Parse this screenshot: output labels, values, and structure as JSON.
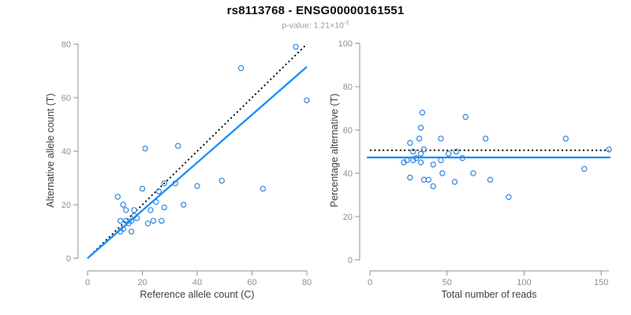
{
  "header": {
    "title": "rs8113768 - ENSG00000161551",
    "subtitle_prefix": "p-value: 1.21×10",
    "subtitle_exponent": "-2"
  },
  "colors": {
    "point": "#2d87e0",
    "fit_line": "#1e90ff",
    "identity_line": "#000000",
    "axis": "#8f8f8f",
    "tick_text": "#8f8f8f",
    "axis_label_text": "#3f3f3f",
    "subtitle_text": "#9b9b9b"
  },
  "chart_data": [
    {
      "type": "scatter",
      "xlabel": "Reference allele count (C)",
      "ylabel": "Alternative allele count (T)",
      "xlim": [
        0,
        80
      ],
      "ylim": [
        0,
        80
      ],
      "xticks": [
        0,
        20,
        40,
        60,
        80
      ],
      "yticks": [
        0,
        20,
        40,
        60,
        80
      ],
      "grid": false,
      "points": [
        [
          11,
          23
        ],
        [
          13,
          20
        ],
        [
          14,
          18
        ],
        [
          20,
          26
        ],
        [
          21,
          41
        ],
        [
          33,
          42
        ],
        [
          56,
          71
        ],
        [
          76,
          79
        ],
        [
          80,
          59
        ],
        [
          12,
          14
        ],
        [
          14,
          14
        ],
        [
          17,
          18
        ],
        [
          17,
          16
        ],
        [
          18,
          15
        ],
        [
          16,
          14
        ],
        [
          15,
          13
        ],
        [
          13,
          11
        ],
        [
          12,
          10
        ],
        [
          16,
          10
        ],
        [
          22,
          13
        ],
        [
          24,
          14
        ],
        [
          27,
          14
        ],
        [
          25,
          21
        ],
        [
          23,
          18
        ],
        [
          26,
          25
        ],
        [
          28,
          28
        ],
        [
          32,
          28
        ],
        [
          28,
          19
        ],
        [
          35,
          20
        ],
        [
          40,
          27
        ],
        [
          49,
          29
        ],
        [
          64,
          26
        ]
      ],
      "lines": [
        {
          "name": "identity-line",
          "style": "dotted",
          "color": "#000000",
          "from": [
            0,
            0
          ],
          "to": [
            80,
            80
          ]
        },
        {
          "name": "fit-line",
          "style": "solid",
          "color": "#1e90ff",
          "from": [
            0,
            0
          ],
          "to": [
            80,
            71.5
          ]
        }
      ]
    },
    {
      "type": "scatter",
      "xlabel": "Total number of reads",
      "ylabel": "Percentage alternative (T)",
      "xlim": [
        0,
        155
      ],
      "ylim": [
        0,
        100
      ],
      "xticks": [
        0,
        50,
        100,
        150
      ],
      "yticks": [
        0,
        20,
        40,
        60,
        80,
        100
      ],
      "grid": false,
      "points": [
        [
          34,
          68
        ],
        [
          33,
          61
        ],
        [
          32,
          56
        ],
        [
          46,
          56
        ],
        [
          62,
          66
        ],
        [
          75,
          56
        ],
        [
          127,
          56
        ],
        [
          155,
          51
        ],
        [
          139,
          42
        ],
        [
          26,
          54
        ],
        [
          28,
          50
        ],
        [
          35,
          51
        ],
        [
          33,
          49
        ],
        [
          33,
          45
        ],
        [
          30,
          47
        ],
        [
          28,
          46
        ],
        [
          24,
          46
        ],
        [
          22,
          45
        ],
        [
          26,
          38
        ],
        [
          35,
          37
        ],
        [
          38,
          37
        ],
        [
          41,
          34
        ],
        [
          46,
          46
        ],
        [
          41,
          44
        ],
        [
          51,
          49
        ],
        [
          56,
          50
        ],
        [
          60,
          47
        ],
        [
          47,
          40
        ],
        [
          55,
          36
        ],
        [
          67,
          40
        ],
        [
          78,
          37
        ],
        [
          90,
          29
        ]
      ],
      "lines": [
        {
          "name": "null-50pct-line",
          "style": "dotted",
          "color": "#000000",
          "from": [
            0,
            50.6
          ],
          "to": [
            155,
            50.6
          ]
        },
        {
          "name": "fit-line",
          "style": "solid",
          "color": "#1e90ff",
          "from": [
            -2,
            47.3
          ],
          "to": [
            156,
            47.3
          ]
        }
      ]
    }
  ]
}
